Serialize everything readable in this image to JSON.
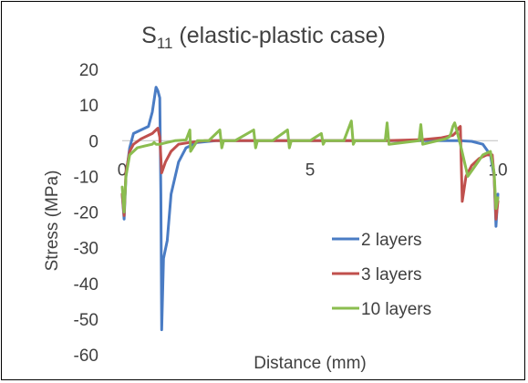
{
  "chart_data": {
    "type": "line",
    "title": {
      "main": "S",
      "subscript": "11",
      "rest": " (elastic-plastic case)"
    },
    "xlabel": "Distance (mm)",
    "ylabel": "Stress (MPa)",
    "xlim": [
      0,
      10
    ],
    "ylim": [
      -60,
      20
    ],
    "x_ticks": [
      "0",
      "5",
      "10"
    ],
    "y_ticks": [
      "20",
      "10",
      "0",
      "-10",
      "-20",
      "-30",
      "-40",
      "-50",
      "-60"
    ],
    "grid": false,
    "legend_position": "bottom-right",
    "series": [
      {
        "name": "2 layers",
        "color": "#4a7cc4",
        "x": [
          0.0,
          0.05,
          0.1,
          0.2,
          0.3,
          0.5,
          0.7,
          0.8,
          0.9,
          0.95,
          1.0,
          1.03,
          1.05,
          1.1,
          1.2,
          1.3,
          1.5,
          1.7,
          2.0,
          2.5,
          3,
          4,
          5,
          6,
          7,
          8,
          8.5,
          9,
          9.3,
          9.6,
          9.8,
          9.9,
          9.95,
          10.0
        ],
        "y": [
          -15,
          -22,
          -10,
          -2,
          2,
          3,
          4,
          8,
          15,
          14,
          12,
          -15,
          -53,
          -33,
          -28,
          -15,
          -6,
          -2,
          -0.5,
          0,
          0,
          0,
          0,
          0,
          0,
          0,
          0,
          0,
          -0.2,
          -1,
          -4,
          -10,
          -24,
          -15
        ]
      },
      {
        "name": "3 layers",
        "color": "#c0504d",
        "x": [
          0.0,
          0.05,
          0.1,
          0.2,
          0.3,
          0.5,
          0.7,
          0.8,
          0.85,
          0.9,
          0.95,
          1.0,
          1.05,
          1.15,
          1.3,
          1.5,
          1.8,
          2.2,
          3,
          4,
          5,
          6,
          7,
          8,
          8.5,
          8.8,
          8.9,
          8.95,
          9.0,
          9.05,
          9.15,
          9.3,
          9.5,
          9.7,
          9.85,
          9.9,
          9.95,
          10.0
        ],
        "y": [
          -15,
          -21,
          -9,
          -3,
          -1,
          0.5,
          1.5,
          2,
          2.5,
          3,
          3.5,
          1,
          -9,
          -6,
          -3,
          -1,
          -0.5,
          0,
          0,
          0,
          0,
          0,
          0,
          0.3,
          0.8,
          1.5,
          2.5,
          3.5,
          4,
          -17,
          -10,
          -7,
          -5,
          -4,
          -4,
          -10,
          -22,
          -17
        ]
      },
      {
        "name": "10 layers",
        "color": "#8bbd4f",
        "x": [
          0.0,
          0.05,
          0.1,
          0.2,
          0.4,
          0.6,
          0.8,
          0.85,
          0.9,
          1.0,
          1.2,
          1.4,
          1.7,
          1.8,
          1.82,
          2.0,
          2.3,
          2.6,
          2.65,
          2.7,
          3.0,
          3.5,
          3.55,
          3.6,
          4.0,
          4.4,
          4.45,
          4.5,
          5.0,
          5.3,
          5.35,
          5.4,
          5.9,
          6.1,
          6.15,
          6.2,
          7.0,
          7.05,
          7.1,
          7.9,
          7.95,
          8.0,
          8.6,
          8.7,
          8.75,
          8.8,
          8.85,
          8.9,
          9.0,
          9.2,
          9.4,
          9.6,
          9.8,
          9.9,
          9.95,
          10.0
        ],
        "y": [
          -13,
          -20,
          -10,
          -4,
          -2,
          -1.5,
          -1,
          -0.5,
          -1,
          -1,
          -0.5,
          0,
          0.2,
          3,
          -3,
          0,
          0,
          3,
          -2,
          0,
          0,
          3,
          -2,
          0,
          0,
          3,
          -2,
          0,
          0,
          2,
          -1,
          0,
          0,
          5.5,
          -1,
          0,
          0,
          5,
          -1,
          0,
          4.5,
          -1,
          0.5,
          1,
          2,
          4,
          5,
          3,
          -1,
          -10,
          -7,
          -4,
          -3,
          -9,
          -19,
          -16
        ]
      }
    ]
  }
}
